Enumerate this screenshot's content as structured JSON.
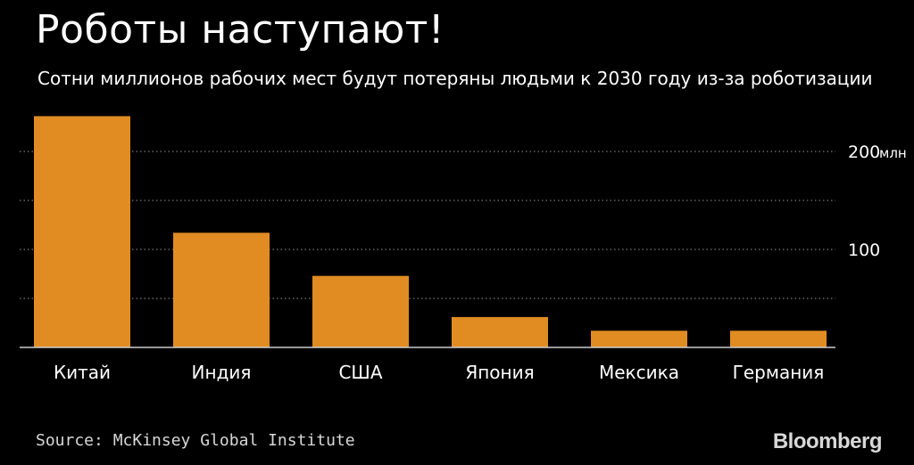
{
  "title": "Роботы наступают!",
  "subtitle": "Сотни миллионов рабочих мест будут потеряны людьми к 2030 году из-за роботизации",
  "source": "Source: McKinsey Global Institute",
  "logo": "Bloomberg",
  "colors": {
    "background": "#000000",
    "bar": "#E08C22",
    "text": "#ffffff",
    "grid": "#777777"
  },
  "chart_data": {
    "type": "bar",
    "categories": [
      "Китай",
      "Индия",
      "США",
      "Япония",
      "Мексика",
      "Германия"
    ],
    "values": [
      236,
      117,
      73,
      31,
      17,
      17
    ],
    "ylim": [
      0,
      250
    ],
    "yticks": [
      {
        "value": 50,
        "label": ""
      },
      {
        "value": 100,
        "label": "100"
      },
      {
        "value": 150,
        "label": ""
      },
      {
        "value": 200,
        "label": "200"
      }
    ],
    "yunit": "млн",
    "grid": true,
    "axis_side": "right"
  }
}
